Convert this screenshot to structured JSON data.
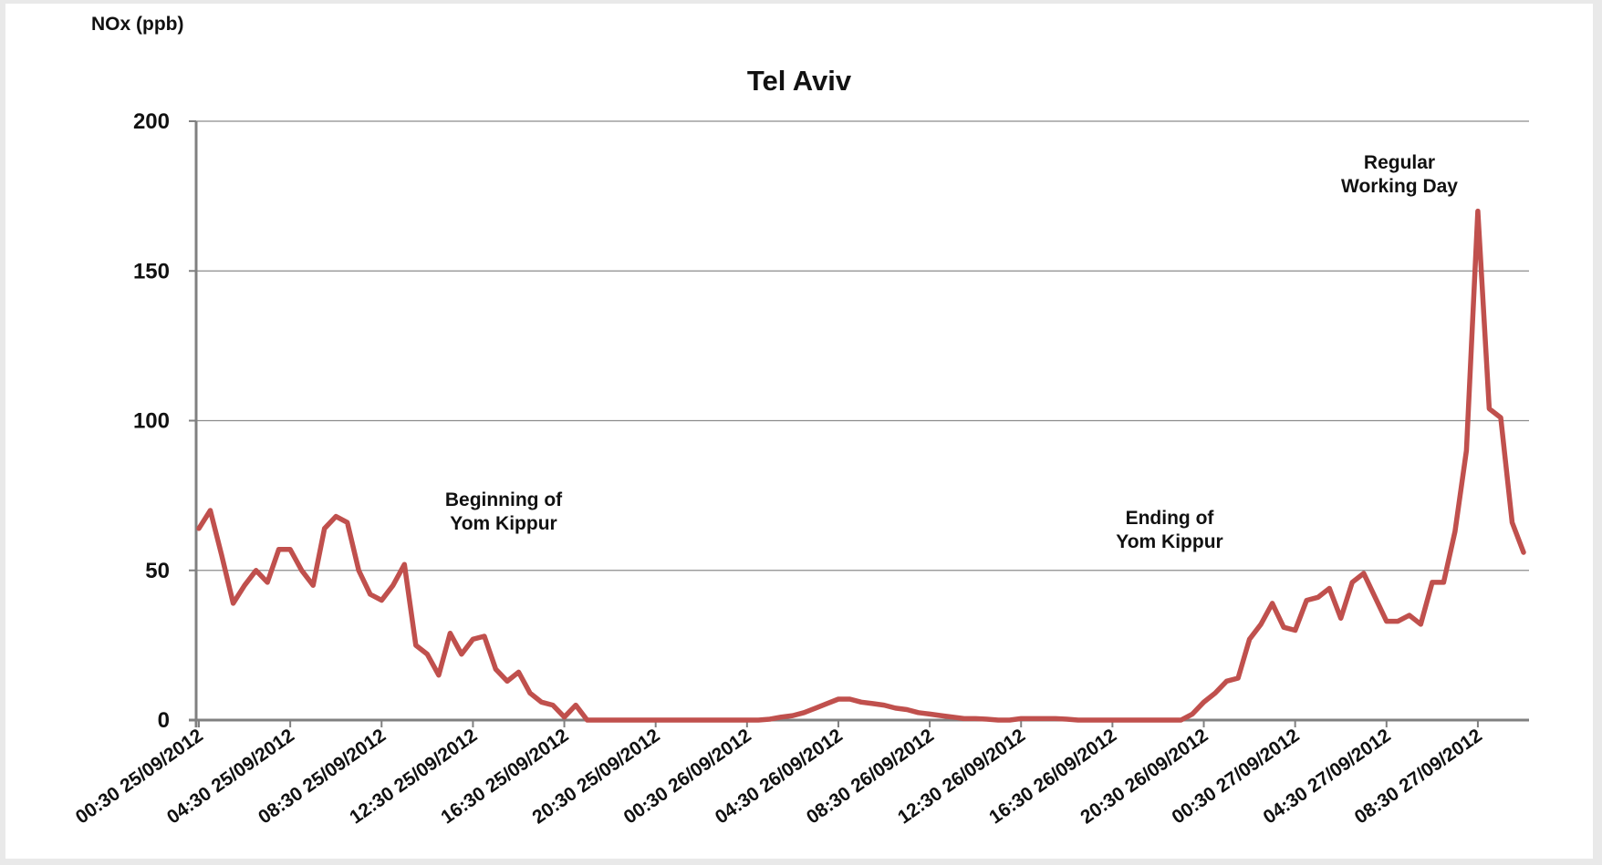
{
  "chart_data": {
    "type": "line",
    "title": "Tel Aviv",
    "ylabel": "NOx (ppb)",
    "xlabel": "",
    "ylim": [
      0,
      200
    ],
    "yticks": [
      0,
      50,
      100,
      150,
      200
    ],
    "grid": true,
    "color": "#c0504d",
    "x_ticks": [
      "00:30 25/09/2012",
      "04:30 25/09/2012",
      "08:30 25/09/2012",
      "12:30 25/09/2012",
      "16:30 25/09/2012",
      "20:30 25/09/2012",
      "00:30 26/09/2012",
      "04:30 26/09/2012",
      "08:30 26/09/2012",
      "12:30 26/09/2012",
      "16:30 26/09/2012",
      "20:30 26/09/2012",
      "00:30 27/09/2012",
      "04:30 27/09/2012",
      "08:30 27/09/2012"
    ],
    "series": [
      {
        "values": [
          64,
          70,
          55,
          39,
          45,
          50,
          46,
          57,
          57,
          50,
          45,
          64,
          68,
          66,
          50,
          42,
          40,
          45,
          52,
          25,
          22,
          15,
          29,
          22,
          27,
          28,
          17,
          13,
          16,
          9,
          6,
          5,
          1,
          5,
          0,
          0,
          0,
          0,
          0,
          0,
          0,
          0,
          0,
          0,
          0,
          0,
          0,
          0,
          0,
          0,
          0.3,
          1,
          1.5,
          2.5,
          4,
          5.5,
          7,
          7,
          6,
          5.5,
          5,
          4,
          3.5,
          2.5,
          2,
          1.5,
          1,
          0.5,
          0.5,
          0.3,
          0,
          0,
          0.5,
          0.5,
          0.5,
          0.5,
          0.3,
          0,
          0,
          0,
          0,
          0,
          0,
          0,
          0,
          0,
          0,
          2,
          6,
          9,
          13,
          14,
          27,
          32,
          39,
          31,
          30,
          40,
          41,
          44,
          34,
          46,
          49,
          41,
          33,
          33,
          35,
          32,
          46,
          46,
          63,
          90,
          170,
          104,
          101,
          66,
          56
        ]
      }
    ],
    "annotations": [
      {
        "lines": [
          "Beginning of",
          "Yom Kippur"
        ]
      },
      {
        "lines": [
          "Ending of",
          "Yom Kippur"
        ]
      },
      {
        "lines": [
          "Regular",
          "Working Day"
        ]
      }
    ]
  }
}
